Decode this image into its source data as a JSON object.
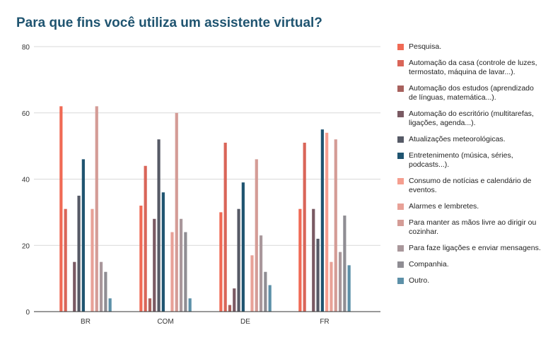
{
  "chart_data": {
    "type": "bar",
    "title": "Para que fins você utiliza um assistente virtual?",
    "xlabel": "",
    "ylabel": "",
    "ylim": [
      0,
      80
    ],
    "yticks": [
      "0",
      "20",
      "40",
      "60",
      "80"
    ],
    "grid": true,
    "legend_position": "right",
    "categories": [
      "BR",
      "COM",
      "DE",
      "FR"
    ],
    "series": [
      {
        "name": "Pesquisa.",
        "color": "#f06a55",
        "values": [
          62,
          32,
          30,
          31
        ]
      },
      {
        "name": "Automação da casa (controle de luzes, termostato, máquina de lavar...).",
        "color": "#d96558",
        "values": [
          31,
          44,
          51,
          51
        ]
      },
      {
        "name": "Automação dos estudos (aprendizado de línguas, matemática...).",
        "color": "#a8615d",
        "values": [
          0,
          4,
          2,
          0
        ]
      },
      {
        "name": "Automação do escritório (multitarefas, ligações, agenda...).",
        "color": "#7a5a63",
        "values": [
          15,
          28,
          7,
          31
        ]
      },
      {
        "name": "Atualizações meteorológicas.",
        "color": "#565a66",
        "values": [
          35,
          52,
          31,
          22
        ]
      },
      {
        "name": "Entretenimento (música, séries, podcasts...).",
        "color": "#1f5470",
        "values": [
          46,
          36,
          39,
          55
        ]
      },
      {
        "name": "Consumo de notícias e calendário de eventos.",
        "color": "#f59e8f",
        "values": [
          0,
          0,
          0,
          54
        ]
      },
      {
        "name": "Alarmes e lembretes.",
        "color": "#e8a197",
        "values": [
          31,
          24,
          17,
          15
        ]
      },
      {
        "name": "Para manter as mãos livre ao dirigir ou cozinhar.",
        "color": "#d49c96",
        "values": [
          62,
          60,
          46,
          52
        ]
      },
      {
        "name": "Para faze ligações e enviar mensagens.",
        "color": "#a9979b",
        "values": [
          15,
          28,
          23,
          18
        ]
      },
      {
        "name": "Companhia.",
        "color": "#8f8d93",
        "values": [
          12,
          24,
          12,
          29
        ]
      },
      {
        "name": "Outro.",
        "color": "#5c90a8",
        "values": [
          4,
          4,
          8,
          14
        ]
      }
    ]
  }
}
